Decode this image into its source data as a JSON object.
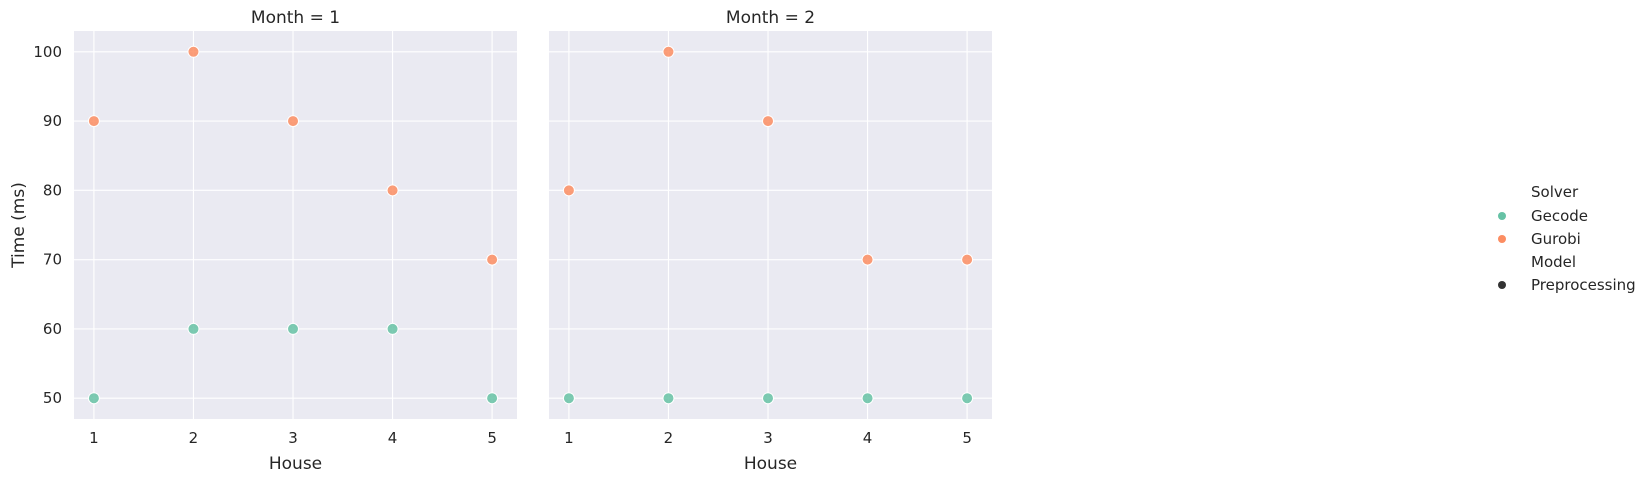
{
  "chart_data": {
    "type": "scatter",
    "xlabel": "House",
    "ylabel": "Time (ms)",
    "x_ticks": [
      1,
      2,
      3,
      4,
      5
    ],
    "y_ticks": [
      50,
      60,
      70,
      80,
      90,
      100
    ],
    "xlim": [
      0.8,
      5.25
    ],
    "ylim": [
      47,
      103
    ],
    "grid": true,
    "legend": {
      "position": "right",
      "hue_title": "Solver",
      "style_title": "Model",
      "entries": [
        {
          "label": "Gecode",
          "color": "#66c2a5"
        },
        {
          "label": "Gurobi",
          "color": "#fc8d62"
        }
      ],
      "style_entries": [
        {
          "label": "Preprocessing",
          "color": "#333333"
        }
      ]
    },
    "panels": [
      {
        "title": "Month = 1",
        "series": [
          {
            "name": "Gecode",
            "color": "#66c2a5",
            "points": [
              [
                1,
                50
              ],
              [
                2,
                60
              ],
              [
                3,
                60
              ],
              [
                4,
                60
              ],
              [
                5,
                50
              ]
            ]
          },
          {
            "name": "Gurobi",
            "color": "#fc8d62",
            "points": [
              [
                1,
                90
              ],
              [
                2,
                100
              ],
              [
                3,
                90
              ],
              [
                4,
                80
              ],
              [
                5,
                70
              ]
            ]
          }
        ]
      },
      {
        "title": "Month = 2",
        "series": [
          {
            "name": "Gecode",
            "color": "#66c2a5",
            "points": [
              [
                1,
                50
              ],
              [
                2,
                50
              ],
              [
                3,
                50
              ],
              [
                4,
                50
              ],
              [
                5,
                50
              ]
            ]
          },
          {
            "name": "Gurobi",
            "color": "#fc8d62",
            "points": [
              [
                1,
                80
              ],
              [
                2,
                100
              ],
              [
                3,
                90
              ],
              [
                4,
                70
              ],
              [
                5,
                70
              ]
            ]
          }
        ]
      }
    ]
  }
}
